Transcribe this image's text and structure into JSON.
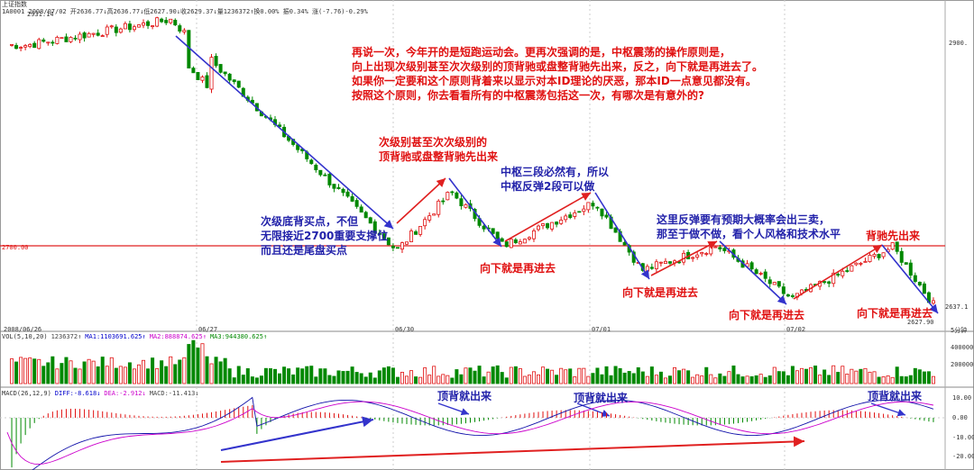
{
  "header": {
    "title": "上证指数",
    "info": "1A0001 2008/07/02 开2636.77↓高2636.77↓低2627.90↓收2629.37↓量1236372↑换0.00% 振0.34% 涨(-7.76)-0.29%"
  },
  "price_labels": {
    "high": "2931.14",
    "low": "2627.90",
    "level": "2700.00",
    "right_top": "2900.",
    "right_bottom": "2637.1"
  },
  "date_labels": [
    "2008/06/26",
    "06/27",
    "06/30",
    "07/01",
    "07/02"
  ],
  "corner_label": "5分钟",
  "annotations": {
    "main": [
      "再说一次，今年开的是短跑运动会。更再次强调的是，中枢震荡的操作原则是，",
      "向上出现次级别甚至次次级别的顶背驰或盘整背驰先出来，反之，向下就是再进去了。",
      "如果你一定要和这个原则背着来以显示对本ID理论的厌恶，那本ID一点意见都没有。",
      "按照这个原则，你去看看所有的中枢震荡包括这一次，有哪次是有意外的?"
    ],
    "top_divergence": [
      "次级别甚至次次级别的",
      "顶背驰或盘整背驰先出来"
    ],
    "buy_point": [
      "次级底背买点，不但",
      "无限接近2700重要支撑位",
      "而且还是尾盘买点"
    ],
    "pivot": [
      "中枢三段必然有，所以",
      "中枢反弹2段可以做"
    ],
    "rebound": [
      "这里反弹要有预期大概率会出三卖，",
      "那至于做不做，看个人风格和技术水平"
    ],
    "divergence_first": "背驰先出来",
    "down_again": "向下就是再进去",
    "macd_top": "顶背就出来"
  },
  "vol_panel": {
    "label": "VOL(5,10,20)",
    "value": "1236372↑",
    "ma1": "MA1:1103691.625↑",
    "ma2": "MA2:888874.625↑",
    "ma3": "MA3:944380.625↑",
    "ticks": [
      "400000",
      "200000"
    ]
  },
  "macd_panel": {
    "label": "MACD(26,12,9)",
    "diff": "DIFF:-8.618↓",
    "dea": "DEA:-2.912↓",
    "macd": "MACD:-11.413↓",
    "ticks": [
      "10.00",
      "0.00",
      "-10.00",
      "-20.00"
    ]
  },
  "colors": {
    "up": "#e01010",
    "down": "#008800",
    "arrow_red": "#e02020",
    "arrow_blue": "#3333cc",
    "level_line": "#e02020"
  },
  "chart_data": {
    "type": "candlestick",
    "title": "上证指数",
    "timeframe": "5分钟",
    "ylim": [
      2620,
      2940
    ],
    "support_level": 2700,
    "turning_points": [
      {
        "label": "high",
        "close": 2931.14
      },
      {
        "label": "buy point",
        "close": 2695
      },
      {
        "label": "top divergence",
        "close": 2755
      },
      {
        "label": "down again",
        "close": 2700
      },
      {
        "label": "pivot high",
        "close": 2745
      },
      {
        "label": "down again",
        "close": 2675
      },
      {
        "label": "rebound high",
        "close": 2700
      },
      {
        "label": "down again",
        "close": 2646
      },
      {
        "label": "divergence high",
        "close": 2699
      },
      {
        "label": "low",
        "close": 2627.9
      }
    ]
  }
}
